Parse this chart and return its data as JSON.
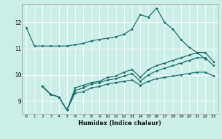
{
  "xlabel": "Humidex (Indice chaleur)",
  "background_color": "#cceee8",
  "line_color": "#1a6b6b",
  "grid_color": "#ffffff",
  "xlim": [
    -0.5,
    23.5
  ],
  "ylim": [
    8.5,
    12.7
  ],
  "yticks": [
    9,
    10,
    11,
    12
  ],
  "xticks": [
    0,
    1,
    2,
    3,
    4,
    5,
    6,
    7,
    8,
    9,
    10,
    11,
    12,
    13,
    14,
    15,
    16,
    17,
    18,
    19,
    20,
    21,
    22,
    23
  ],
  "line1_x": [
    0,
    1,
    2,
    3,
    4,
    5,
    6,
    7,
    8,
    9,
    10,
    11,
    12,
    13,
    14,
    15,
    16,
    17,
    18,
    19,
    20,
    21,
    22
  ],
  "line1_y": [
    11.8,
    11.1,
    11.1,
    11.1,
    11.1,
    11.1,
    11.15,
    11.2,
    11.3,
    11.35,
    11.4,
    11.45,
    11.55,
    11.75,
    12.3,
    12.2,
    12.55,
    12.0,
    11.75,
    11.35,
    11.05,
    10.85,
    10.6
  ],
  "line2_x": [
    2,
    3,
    4,
    5,
    6,
    7,
    8,
    9,
    10,
    11,
    12,
    13,
    14,
    15,
    16,
    17,
    18,
    19,
    20,
    21,
    22,
    23
  ],
  "line2_y": [
    9.55,
    9.25,
    9.15,
    8.65,
    9.5,
    9.6,
    9.7,
    9.75,
    9.9,
    9.95,
    10.1,
    10.2,
    9.9,
    10.2,
    10.35,
    10.45,
    10.55,
    10.65,
    10.75,
    10.85,
    10.85,
    10.5
  ],
  "line3_x": [
    2,
    3,
    4,
    5,
    6,
    7,
    8,
    9,
    10,
    11,
    12,
    13,
    14,
    15,
    16,
    17,
    18,
    19,
    20,
    21,
    22,
    23
  ],
  "line3_y": [
    9.55,
    9.25,
    9.15,
    8.65,
    9.4,
    9.5,
    9.65,
    9.7,
    9.8,
    9.85,
    9.95,
    10.05,
    9.75,
    10.0,
    10.15,
    10.25,
    10.35,
    10.45,
    10.55,
    10.65,
    10.65,
    10.35
  ],
  "line4_x": [
    2,
    3,
    4,
    5,
    6,
    7,
    8,
    9,
    10,
    11,
    12,
    13,
    14,
    15,
    16,
    17,
    18,
    19,
    20,
    21,
    22,
    23
  ],
  "line4_y": [
    9.55,
    9.25,
    9.15,
    8.65,
    9.3,
    9.35,
    9.5,
    9.55,
    9.65,
    9.7,
    9.75,
    9.8,
    9.6,
    9.75,
    9.85,
    9.9,
    9.95,
    10.0,
    10.05,
    10.1,
    10.1,
    9.95
  ]
}
